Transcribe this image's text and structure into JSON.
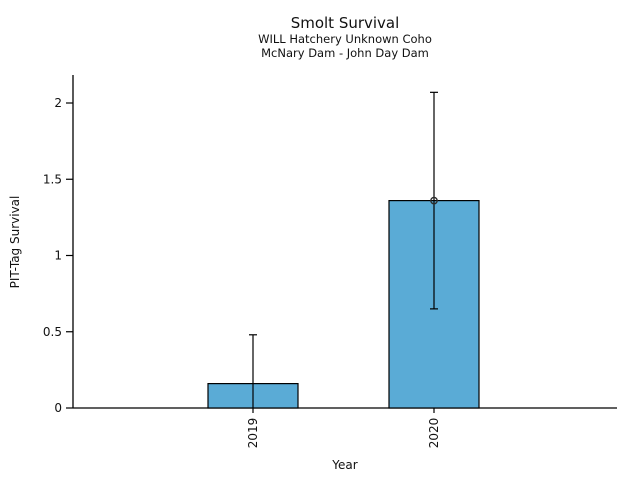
{
  "chart_data": {
    "type": "bar",
    "title": "Smolt Survival",
    "subtitle": [
      "WILL Hatchery Unknown Coho",
      "McNary Dam - John Day Dam"
    ],
    "xlabel": "Year",
    "ylabel": "PIT-Tag Survival",
    "categories": [
      "2019",
      "2020"
    ],
    "values": [
      0.16,
      1.36
    ],
    "error_bars": [
      {
        "low": 0.0,
        "high": 0.48,
        "cap_low": false,
        "cap_high": true
      },
      {
        "low": 0.65,
        "high": 2.07,
        "cap_low": true,
        "cap_high": true
      }
    ],
    "point_markers": [
      false,
      true
    ],
    "yticks": [
      "0",
      "0.5",
      "1",
      "1.5",
      "2"
    ],
    "ytick_values": [
      0,
      0.5,
      1,
      1.5,
      2
    ],
    "ylim": [
      0,
      2.18
    ],
    "grid": false,
    "bar_color": "#5AABD6",
    "bar_edge_color": "#000000",
    "error_bar_color": "#000000",
    "marker_style": "open-circle",
    "marker_edge_color": "#2b2b2b"
  }
}
